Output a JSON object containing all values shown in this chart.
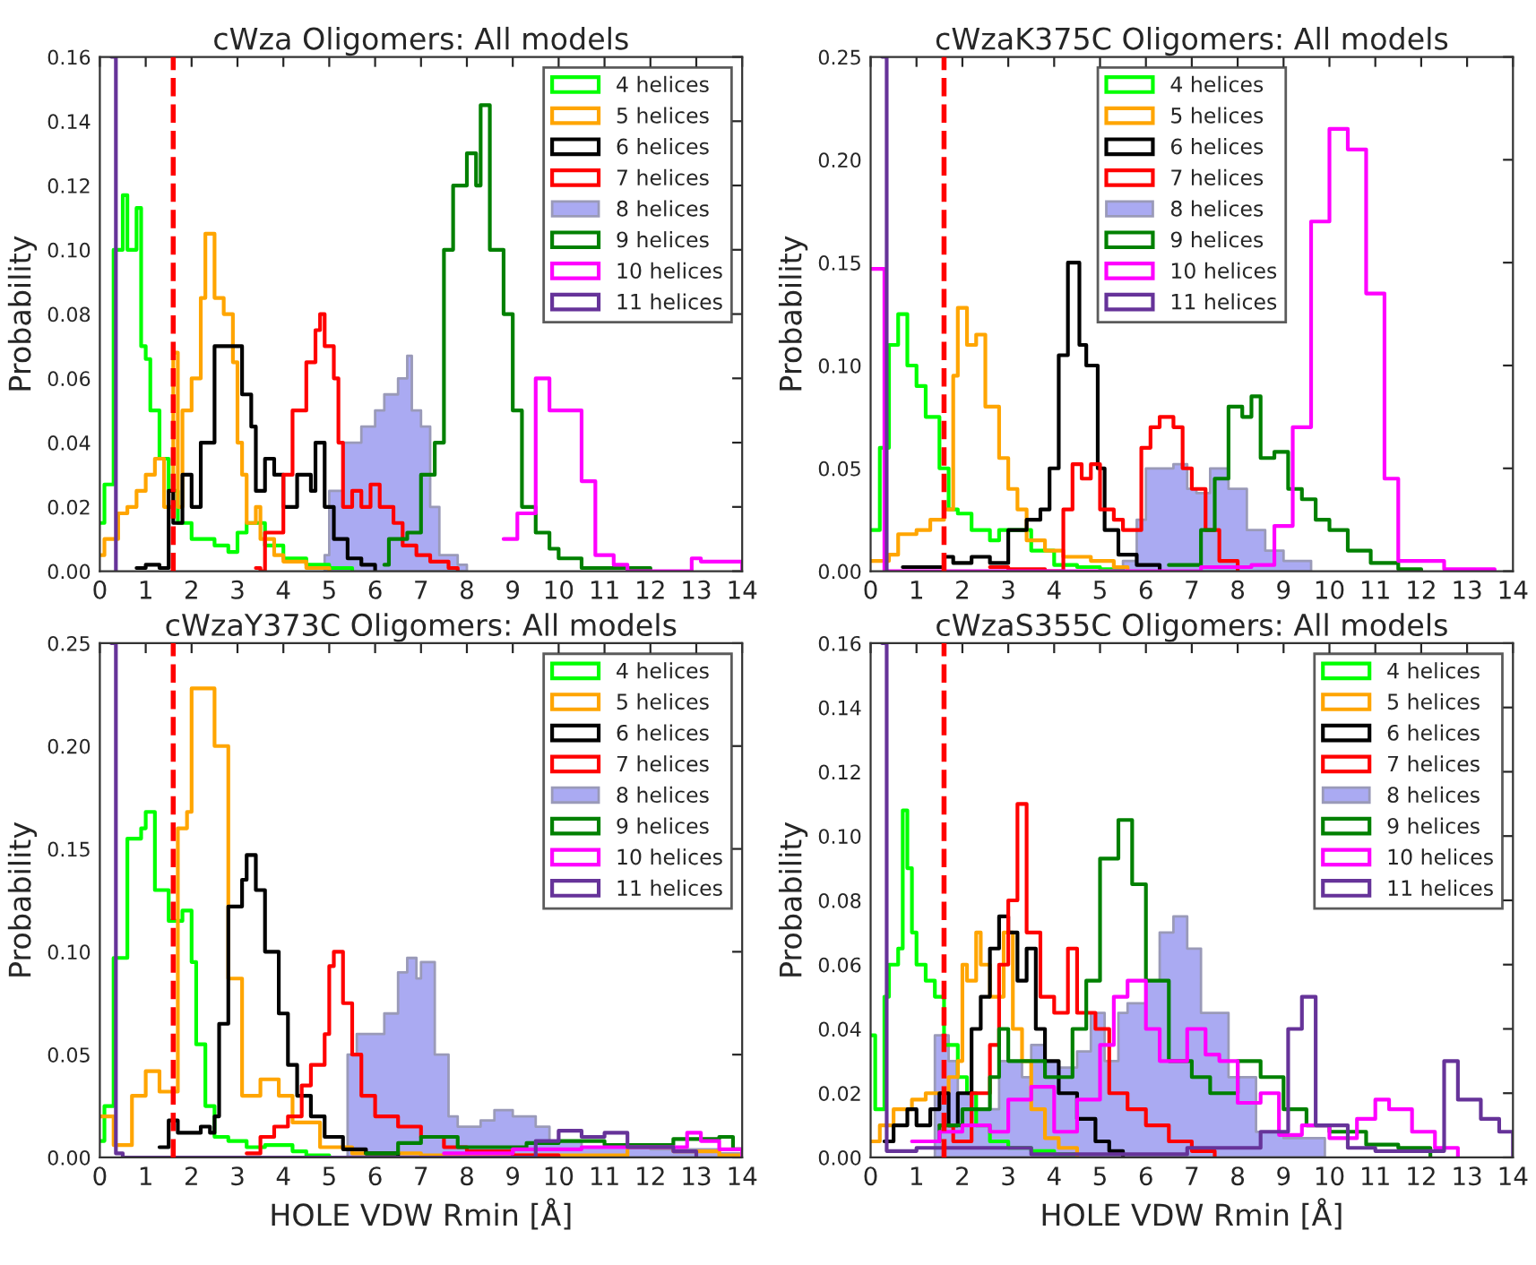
{
  "chart_data": [
    {
      "type": "step",
      "title": "cWza Oligomers: All models",
      "ylabel": "Probability",
      "xlim": [
        0,
        14
      ],
      "ylim": [
        0,
        0.16
      ],
      "xticks": [
        0,
        1,
        2,
        3,
        4,
        5,
        6,
        7,
        8,
        9,
        10,
        11,
        12,
        13,
        14
      ],
      "yticks": [
        {
          "value": 0,
          "label": "0.00"
        },
        {
          "value": 0.02,
          "label": "0.02"
        },
        {
          "value": 0.04,
          "label": "0.04"
        },
        {
          "value": 0.06,
          "label": "0.06"
        },
        {
          "value": 0.08,
          "label": "0.08"
        },
        {
          "value": 0.1,
          "label": "0.10"
        },
        {
          "value": 0.12,
          "label": "0.12"
        },
        {
          "value": 0.14,
          "label": "0.14"
        },
        {
          "value": 0.16,
          "label": "0.16"
        }
      ],
      "legend": "top right",
      "grid": false,
      "ref_lines": [
        {
          "axis": "x",
          "value": 1.6,
          "color": "#ff0000",
          "line_style": "dashed"
        }
      ],
      "series": [
        {
          "name": "4 helices",
          "color": "#00ff00",
          "x": [
            0,
            0.1,
            0.3,
            0.4,
            0.5,
            0.6,
            0.8,
            0.9,
            1.0,
            1.1,
            1.3,
            1.5,
            1.7,
            2.0,
            2.5,
            2.8,
            3.0,
            3.2,
            3.6,
            4.0,
            4.5,
            5.0,
            5.5
          ],
          "values": [
            0.015,
            0.027,
            0.1,
            0.1,
            0.117,
            0.1,
            0.113,
            0.07,
            0.066,
            0.05,
            0.035,
            0.025,
            0.015,
            0.01,
            0.008,
            0.006,
            0.012,
            0.015,
            0.008,
            0.004,
            0.002,
            0.001,
            0
          ]
        },
        {
          "name": "5 helices",
          "color": "#ffa500",
          "x": [
            0,
            0.1,
            0.4,
            0.6,
            0.8,
            1.0,
            1.2,
            1.4,
            1.6,
            1.7,
            1.8,
            2.0,
            2.2,
            2.3,
            2.5,
            2.7,
            2.9,
            3.0,
            3.1,
            3.2,
            3.4,
            3.5,
            3.8,
            4.0,
            4.5,
            5.0
          ],
          "values": [
            0.005,
            0.01,
            0.018,
            0.02,
            0.025,
            0.03,
            0.035,
            0.02,
            0.068,
            0.02,
            0.05,
            0.06,
            0.085,
            0.105,
            0.085,
            0.08,
            0.065,
            0.04,
            0.03,
            0.015,
            0.02,
            0.01,
            0.005,
            0.003,
            0.001,
            0
          ]
        },
        {
          "name": "6 helices",
          "color": "#000000",
          "x": [
            0.8,
            1.0,
            1.3,
            1.5,
            1.6,
            1.8,
            2.0,
            2.2,
            2.5,
            2.9,
            3.1,
            3.3,
            3.4,
            3.6,
            3.8,
            4.0,
            4.3,
            4.6,
            4.7,
            4.9,
            5.1,
            5.4,
            5.7,
            6.0
          ],
          "values": [
            0.001,
            0.002,
            0.001,
            0.025,
            0.015,
            0.03,
            0.02,
            0.04,
            0.07,
            0.07,
            0.055,
            0.045,
            0.025,
            0.035,
            0.03,
            0.02,
            0.03,
            0.025,
            0.04,
            0.02,
            0.01,
            0.004,
            0.002,
            0
          ]
        },
        {
          "name": "7 helices",
          "color": "#ff0000",
          "x": [
            3.4,
            3.5,
            3.6,
            4.0,
            4.2,
            4.5,
            4.7,
            4.8,
            4.9,
            5.1,
            5.2,
            5.3,
            5.5,
            5.7,
            5.9,
            6.1,
            6.4,
            6.6,
            6.9,
            7.2,
            7.6,
            7.8
          ],
          "values": [
            0.001,
            0,
            0.012,
            0.03,
            0.05,
            0.065,
            0.075,
            0.08,
            0.07,
            0.06,
            0.04,
            0.02,
            0.025,
            0.02,
            0.027,
            0.02,
            0.015,
            0.008,
            0.005,
            0.003,
            0.001,
            0
          ]
        },
        {
          "name": "8 helices",
          "type": "area",
          "color": "#aaaaf2",
          "x": [
            4.9,
            5.0,
            5.3,
            5.7,
            6.0,
            6.2,
            6.5,
            6.7,
            6.8,
            7.0,
            7.2,
            7.4,
            7.8,
            8.0
          ],
          "values": [
            0.005,
            0.025,
            0.04,
            0.045,
            0.05,
            0.055,
            0.06,
            0.067,
            0.05,
            0.045,
            0.02,
            0.005,
            0.002,
            0
          ]
        },
        {
          "name": "9 helices",
          "color": "#008000",
          "x": [
            6.2,
            6.3,
            6.7,
            7.0,
            7.3,
            7.5,
            7.7,
            8.0,
            8.2,
            8.3,
            8.5,
            8.8,
            9.0,
            9.2,
            9.5,
            9.8,
            10.0,
            10.5,
            12.0
          ],
          "values": [
            0.002,
            0.01,
            0.012,
            0.03,
            0.04,
            0.1,
            0.12,
            0.13,
            0.12,
            0.145,
            0.1,
            0.08,
            0.05,
            0.02,
            0.012,
            0.007,
            0.004,
            0.001,
            0
          ]
        },
        {
          "name": "10 helices",
          "color": "#ff00ff",
          "x": [
            8.8,
            9.1,
            9.5,
            9.8,
            10.5,
            10.8,
            11.2,
            11.5,
            12.9,
            13.1,
            14.0
          ],
          "values": [
            0.01,
            0.018,
            0.06,
            0.05,
            0.028,
            0.005,
            0.002,
            0,
            0.004,
            0.003,
            0
          ]
        },
        {
          "name": "11 helices",
          "color": "#663399",
          "x": [
            0.25,
            0.35
          ],
          "values": [
            0.16,
            0
          ]
        }
      ]
    },
    {
      "type": "step",
      "title": "cWzaK375C Oligomers: All models",
      "ylabel": "Probability",
      "xlim": [
        0,
        14
      ],
      "ylim": [
        0,
        0.25
      ],
      "xticks": [
        0,
        1,
        2,
        3,
        4,
        5,
        6,
        7,
        8,
        9,
        10,
        11,
        12,
        13,
        14
      ],
      "yticks": [
        {
          "value": 0,
          "label": "0.00"
        },
        {
          "value": 0.05,
          "label": "0.05"
        },
        {
          "value": 0.1,
          "label": "0.10"
        },
        {
          "value": 0.15,
          "label": "0.15"
        },
        {
          "value": 0.2,
          "label": "0.20"
        },
        {
          "value": 0.25,
          "label": "0.25"
        }
      ],
      "legend": "top",
      "grid": false,
      "ref_lines": [
        {
          "axis": "x",
          "value": 1.6,
          "color": "#ff0000",
          "line_style": "dashed"
        }
      ],
      "series": [
        {
          "name": "4 helices",
          "color": "#00ff00",
          "x": [
            0,
            0.2,
            0.4,
            0.6,
            0.8,
            1.0,
            1.2,
            1.5,
            1.7,
            1.9,
            2.2,
            2.6,
            2.8,
            3.2,
            3.5,
            4.0,
            4.5,
            5.0,
            5.5
          ],
          "values": [
            0.02,
            0.06,
            0.11,
            0.125,
            0.1,
            0.09,
            0.075,
            0.05,
            0.03,
            0.028,
            0.02,
            0.015,
            0.02,
            0.02,
            0.01,
            0.003,
            0.002,
            0.001,
            0
          ]
        },
        {
          "name": "5 helices",
          "color": "#ffa500",
          "x": [
            0,
            0.4,
            0.6,
            1.0,
            1.3,
            1.6,
            1.8,
            1.9,
            2.1,
            2.3,
            2.5,
            2.8,
            3.0,
            3.2,
            3.4,
            3.8,
            4.2,
            4.8,
            5.3,
            5.6
          ],
          "values": [
            0.005,
            0.008,
            0.018,
            0.02,
            0.025,
            0.03,
            0.095,
            0.128,
            0.11,
            0.115,
            0.08,
            0.055,
            0.04,
            0.03,
            0.015,
            0.01,
            0.007,
            0.005,
            0.002,
            0
          ]
        },
        {
          "name": "6 helices",
          "color": "#000000",
          "x": [
            0.7,
            1.2,
            1.6,
            1.8,
            2.2,
            2.6,
            3.0,
            3.4,
            3.7,
            3.9,
            4.1,
            4.3,
            4.55,
            4.7,
            4.95,
            5.1,
            5.4,
            5.8,
            6.3
          ],
          "values": [
            0.002,
            0.002,
            0.007,
            0.004,
            0.007,
            0.004,
            0.02,
            0.025,
            0.03,
            0.05,
            0.105,
            0.15,
            0.11,
            0.1,
            0.05,
            0.02,
            0.008,
            0.003,
            0
          ]
        },
        {
          "name": "7 helices",
          "color": "#ff0000",
          "x": [
            2.6,
            3.0,
            3.8,
            4.2,
            4.4,
            4.6,
            4.8,
            5.0,
            5.3,
            5.5,
            5.8,
            5.9,
            6.1,
            6.3,
            6.6,
            6.8,
            7.0,
            7.3,
            7.6,
            8.0
          ],
          "values": [
            0.002,
            0.001,
            0,
            0.03,
            0.052,
            0.045,
            0.052,
            0.03,
            0.025,
            0.02,
            0.02,
            0.06,
            0.07,
            0.075,
            0.07,
            0.05,
            0.04,
            0.02,
            0.005,
            0
          ]
        },
        {
          "name": "8 helices",
          "type": "area",
          "color": "#aaaaf2",
          "x": [
            5.5,
            5.8,
            6.0,
            6.6,
            6.9,
            7.1,
            7.4,
            7.8,
            8.2,
            8.6,
            9.0,
            9.6
          ],
          "values": [
            0.005,
            0.025,
            0.05,
            0.052,
            0.04,
            0.038,
            0.05,
            0.04,
            0.02,
            0.01,
            0.005,
            0
          ]
        },
        {
          "name": "9 helices",
          "color": "#008000",
          "x": [
            6.5,
            7.2,
            7.5,
            7.8,
            8.1,
            8.3,
            8.5,
            8.8,
            9.1,
            9.4,
            9.7,
            10.0,
            10.4,
            10.9,
            11.5,
            12.0
          ],
          "values": [
            0.003,
            0.02,
            0.045,
            0.08,
            0.075,
            0.085,
            0.055,
            0.058,
            0.04,
            0.035,
            0.025,
            0.02,
            0.01,
            0.004,
            0.001,
            0
          ]
        },
        {
          "name": "10 helices",
          "color": "#ff00ff",
          "x": [
            0,
            0.3,
            7.2,
            8.3,
            8.8,
            9.2,
            9.6,
            10.0,
            10.4,
            10.8,
            11.2,
            11.5,
            12.5,
            13.6
          ],
          "values": [
            0.147,
            0,
            0.002,
            0.003,
            0.022,
            0.07,
            0.17,
            0.215,
            0.205,
            0.135,
            0.045,
            0.005,
            0.001,
            0
          ]
        },
        {
          "name": "11 helices",
          "color": "#663399",
          "x": [
            0.25,
            0.35
          ],
          "values": [
            0.25,
            0
          ]
        }
      ]
    },
    {
      "type": "step",
      "title": "cWzaY373C Oligomers: All models",
      "xlabel": "HOLE VDW Rmin [Å]",
      "ylabel": "Probability",
      "xlim": [
        0,
        14
      ],
      "ylim": [
        0,
        0.25
      ],
      "xticks": [
        0,
        1,
        2,
        3,
        4,
        5,
        6,
        7,
        8,
        9,
        10,
        11,
        12,
        13,
        14
      ],
      "yticks": [
        {
          "value": 0,
          "label": "0.00"
        },
        {
          "value": 0.05,
          "label": "0.05"
        },
        {
          "value": 0.1,
          "label": "0.10"
        },
        {
          "value": 0.15,
          "label": "0.15"
        },
        {
          "value": 0.2,
          "label": "0.20"
        },
        {
          "value": 0.25,
          "label": "0.25"
        }
      ],
      "legend": "top right",
      "grid": false,
      "ref_lines": [
        {
          "axis": "x",
          "value": 1.6,
          "color": "#ff0000",
          "line_style": "dashed"
        }
      ],
      "series": [
        {
          "name": "4 helices",
          "color": "#00ff00",
          "x": [
            0,
            0.1,
            0.3,
            0.6,
            0.9,
            1.0,
            1.2,
            1.5,
            1.8,
            2.0,
            2.1,
            2.3,
            2.5,
            2.8,
            3.2,
            3.6,
            4.2,
            4.5,
            5.0
          ],
          "values": [
            0.008,
            0.025,
            0.097,
            0.155,
            0.16,
            0.168,
            0.13,
            0.115,
            0.12,
            0.095,
            0.055,
            0.025,
            0.01,
            0.008,
            0.005,
            0.006,
            0.003,
            0.001,
            0
          ]
        },
        {
          "name": "5 helices",
          "color": "#ffa500",
          "x": [
            0,
            0.3,
            0.7,
            1.0,
            1.3,
            1.7,
            1.9,
            2.0,
            2.5,
            2.8,
            3.1,
            3.5,
            3.9,
            4.2,
            4.8,
            5.5,
            7.0,
            11.5,
            12.5,
            13.5,
            14.0
          ],
          "values": [
            0.02,
            0.006,
            0.03,
            0.042,
            0.032,
            0.16,
            0.168,
            0.228,
            0.2,
            0.087,
            0.03,
            0.038,
            0.03,
            0.017,
            0.005,
            0.002,
            0.001,
            0.005,
            0.003,
            0.001,
            0
          ]
        },
        {
          "name": "6 helices",
          "color": "#000000",
          "x": [
            1.3,
            1.5,
            1.7,
            2.2,
            2.4,
            2.5,
            2.6,
            2.8,
            3.1,
            3.2,
            3.4,
            3.6,
            3.9,
            4.1,
            4.3,
            4.6,
            4.9,
            5.3,
            5.8,
            6.5
          ],
          "values": [
            0.005,
            0.018,
            0.012,
            0.015,
            0.012,
            0.02,
            0.065,
            0.122,
            0.135,
            0.147,
            0.13,
            0.1,
            0.07,
            0.045,
            0.03,
            0.02,
            0.01,
            0.004,
            0.002,
            0
          ]
        },
        {
          "name": "7 helices",
          "color": "#ff0000",
          "x": [
            3.2,
            3.5,
            3.8,
            4.1,
            4.4,
            4.6,
            4.9,
            5.0,
            5.1,
            5.3,
            5.5,
            5.7,
            6.0,
            6.5,
            7.0,
            7.5,
            8.0,
            9.0,
            10.0
          ],
          "values": [
            0.002,
            0.01,
            0.015,
            0.02,
            0.035,
            0.045,
            0.06,
            0.093,
            0.1,
            0.075,
            0.05,
            0.03,
            0.02,
            0.015,
            0.01,
            0.005,
            0.003,
            0.001,
            0
          ]
        },
        {
          "name": "8 helices",
          "type": "area",
          "color": "#aaaaf2",
          "x": [
            5.4,
            5.6,
            6.2,
            6.5,
            6.7,
            6.9,
            7.0,
            7.3,
            7.6,
            7.8,
            8.3,
            8.6,
            9.0,
            9.5,
            9.8,
            10.5,
            12.0,
            13.5,
            14.0
          ],
          "values": [
            0.05,
            0.06,
            0.07,
            0.09,
            0.097,
            0.087,
            0.095,
            0.05,
            0.02,
            0.015,
            0.018,
            0.023,
            0.02,
            0.015,
            0.008,
            0.005,
            0.004,
            0.002,
            0
          ]
        },
        {
          "name": "9 helices",
          "color": "#008000",
          "x": [
            5.8,
            6.5,
            7.0,
            7.8,
            8.5,
            9.3,
            10.0,
            11.0,
            12.5,
            13.5,
            13.8,
            14.0
          ],
          "values": [
            0.002,
            0.007,
            0.01,
            0.005,
            0.005,
            0.007,
            0.008,
            0.006,
            0.009,
            0.01,
            0.004,
            0
          ]
        },
        {
          "name": "10 helices",
          "color": "#ff00ff",
          "x": [
            7.5,
            9.0,
            10.5,
            12.0,
            12.8,
            13.1,
            13.5,
            14.0
          ],
          "values": [
            0.002,
            0.004,
            0.005,
            0.005,
            0.012,
            0.008,
            0.004,
            0
          ]
        },
        {
          "name": "11 helices",
          "color": "#663399",
          "x": [
            0.25,
            0.35,
            0.5,
            9.5,
            10.0,
            10.5,
            11.0,
            11.5,
            12.5,
            13.0
          ],
          "values": [
            0.25,
            0.002,
            0,
            0.008,
            0.013,
            0.01,
            0.012,
            0.005,
            0.003,
            0
          ]
        }
      ]
    },
    {
      "type": "step",
      "title": "cWzaS355C Oligomers: All models",
      "xlabel": "HOLE VDW Rmin [Å]",
      "ylabel": "Probability",
      "xlim": [
        0,
        14
      ],
      "ylim": [
        0,
        0.16
      ],
      "xticks": [
        0,
        1,
        2,
        3,
        4,
        5,
        6,
        7,
        8,
        9,
        10,
        11,
        12,
        13,
        14
      ],
      "yticks": [
        {
          "value": 0,
          "label": "0.00"
        },
        {
          "value": 0.02,
          "label": "0.02"
        },
        {
          "value": 0.04,
          "label": "0.04"
        },
        {
          "value": 0.06,
          "label": "0.06"
        },
        {
          "value": 0.08,
          "label": "0.08"
        },
        {
          "value": 0.1,
          "label": "0.10"
        },
        {
          "value": 0.12,
          "label": "0.12"
        },
        {
          "value": 0.14,
          "label": "0.14"
        },
        {
          "value": 0.16,
          "label": "0.16"
        }
      ],
      "legend": "top right",
      "grid": false,
      "ref_lines": [
        {
          "axis": "x",
          "value": 1.6,
          "color": "#ff0000",
          "line_style": "dashed"
        }
      ],
      "series": [
        {
          "name": "4 helices",
          "color": "#00ff00",
          "x": [
            0,
            0.1,
            0.3,
            0.4,
            0.6,
            0.7,
            0.8,
            0.9,
            1.0,
            1.2,
            1.4,
            1.6,
            1.9,
            2.1,
            2.3,
            2.6,
            3.0,
            3.5,
            4.0,
            4.5
          ],
          "values": [
            0.038,
            0.015,
            0.05,
            0.06,
            0.065,
            0.108,
            0.09,
            0.07,
            0.06,
            0.055,
            0.05,
            0.035,
            0.025,
            0.02,
            0.01,
            0.005,
            0.003,
            0.002,
            0.001,
            0
          ]
        },
        {
          "name": "5 helices",
          "color": "#ffa500",
          "x": [
            0,
            0.2,
            0.5,
            0.9,
            1.2,
            1.5,
            1.7,
            1.9,
            2.0,
            2.1,
            2.3,
            2.4,
            2.6,
            2.9,
            3.1,
            3.3,
            3.5,
            3.8,
            4.1,
            4.5
          ],
          "values": [
            0.005,
            0.01,
            0.015,
            0.018,
            0.02,
            0.02,
            0.025,
            0.03,
            0.06,
            0.055,
            0.07,
            0.06,
            0.05,
            0.07,
            0.04,
            0.03,
            0.015,
            0.006,
            0.003,
            0
          ]
        },
        {
          "name": "6 helices",
          "color": "#000000",
          "x": [
            0.3,
            0.5,
            0.8,
            1.0,
            1.3,
            1.5,
            1.7,
            1.9,
            2.2,
            2.4,
            2.6,
            2.8,
            3.0,
            3.2,
            3.4,
            3.6,
            3.8,
            4.1,
            4.5,
            4.9,
            5.2,
            5.5
          ],
          "values": [
            0.005,
            0.01,
            0.015,
            0.01,
            0.015,
            0.02,
            0.01,
            0.02,
            0.04,
            0.05,
            0.065,
            0.075,
            0.07,
            0.055,
            0.065,
            0.04,
            0.03,
            0.02,
            0.012,
            0.005,
            0.002,
            0
          ]
        },
        {
          "name": "7 helices",
          "color": "#ff0000",
          "x": [
            1.5,
            1.8,
            2.2,
            2.6,
            2.8,
            3.0,
            3.2,
            3.4,
            3.7,
            4.0,
            4.3,
            4.5,
            4.9,
            5.2,
            5.6,
            6.0,
            6.5,
            7.0,
            7.5
          ],
          "values": [
            0.01,
            0.005,
            0.02,
            0.035,
            0.06,
            0.08,
            0.11,
            0.07,
            0.05,
            0.045,
            0.065,
            0.045,
            0.04,
            0.02,
            0.015,
            0.01,
            0.005,
            0.002,
            0
          ]
        },
        {
          "name": "8 helices",
          "type": "area",
          "color": "#aaaaf2",
          "x": [
            1.4,
            1.7,
            1.9,
            2.3,
            2.8,
            3.3,
            3.5,
            3.8,
            4.1,
            4.5,
            4.8,
            5.1,
            5.4,
            5.6,
            6.0,
            6.3,
            6.6,
            6.9,
            7.2,
            7.8,
            8.4,
            9.0,
            9.9
          ],
          "values": [
            0.038,
            0.03,
            0.02,
            0.015,
            0.03,
            0.025,
            0.035,
            0.03,
            0.028,
            0.033,
            0.045,
            0.03,
            0.045,
            0.048,
            0.055,
            0.07,
            0.075,
            0.065,
            0.045,
            0.025,
            0.008,
            0.006,
            0
          ]
        },
        {
          "name": "9 helices",
          "color": "#008000",
          "x": [
            1.0,
            1.5,
            2.0,
            2.6,
            2.8,
            3.0,
            3.4,
            3.8,
            4.4,
            4.7,
            5.0,
            5.4,
            5.7,
            6.0,
            6.5,
            7.0,
            7.4,
            8.0,
            8.5,
            9.0,
            9.5,
            10.0,
            10.8,
            11.5,
            12.2
          ],
          "values": [
            0.005,
            0.01,
            0.015,
            0.025,
            0.04,
            0.03,
            0.03,
            0.025,
            0.04,
            0.055,
            0.093,
            0.105,
            0.085,
            0.055,
            0.03,
            0.025,
            0.02,
            0.03,
            0.025,
            0.015,
            0.01,
            0.008,
            0.004,
            0.003,
            0
          ]
        },
        {
          "name": "10 helices",
          "color": "#ff00ff",
          "x": [
            0.9,
            1.5,
            2.0,
            2.6,
            3.0,
            3.5,
            4.0,
            4.5,
            5.0,
            5.3,
            5.6,
            6.0,
            6.3,
            6.9,
            7.3,
            7.6,
            8.0,
            8.5,
            8.9,
            9.4,
            10.0,
            10.6,
            11.0,
            11.3,
            11.8,
            12.3,
            12.8
          ],
          "values": [
            0.005,
            0.008,
            0.01,
            0.008,
            0.018,
            0.022,
            0.008,
            0.018,
            0.035,
            0.05,
            0.055,
            0.04,
            0.03,
            0.04,
            0.032,
            0.03,
            0.017,
            0.02,
            0.007,
            0.01,
            0.006,
            0.012,
            0.018,
            0.015,
            0.008,
            0.003,
            0
          ]
        },
        {
          "name": "11 helices",
          "color": "#663399",
          "x": [
            0.25,
            0.35,
            1.0,
            3.5,
            6.9,
            7.5,
            8.0,
            8.5,
            9.1,
            9.4,
            9.7,
            10.4,
            11.0,
            12.5,
            12.8,
            13.3,
            13.7,
            14.0
          ],
          "values": [
            0.16,
            0.002,
            0.003,
            0.001,
            0.003,
            0.003,
            0.003,
            0.008,
            0.04,
            0.05,
            0.01,
            0.003,
            0.002,
            0.03,
            0.018,
            0.012,
            0.008,
            0
          ]
        }
      ]
    }
  ]
}
